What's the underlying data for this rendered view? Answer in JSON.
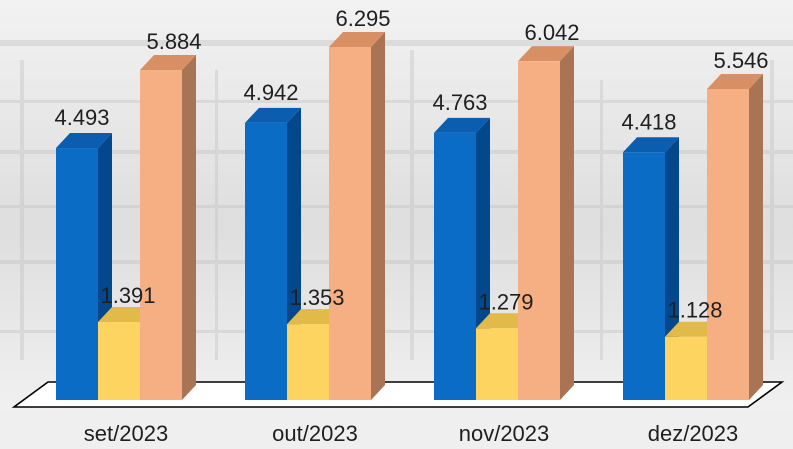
{
  "chart_data": {
    "type": "bar",
    "style": "3d-clustered-column",
    "categories": [
      "set/2023",
      "out/2023",
      "nov/2023",
      "dez/2023"
    ],
    "series": [
      {
        "color": "#0a6cc4",
        "values": [
          4.493,
          4.942,
          4.763,
          4.418
        ]
      },
      {
        "color": "#fcd45f",
        "values": [
          1.391,
          1.353,
          1.279,
          1.128
        ]
      },
      {
        "color": "#f5af82",
        "values": [
          5.884,
          6.295,
          6.042,
          5.546
        ]
      }
    ],
    "data_labels": [
      [
        "4.493",
        "4.942",
        "4.763",
        "4.418"
      ],
      [
        "1.391",
        "1.353",
        "1.279",
        "1.128"
      ],
      [
        "5.884",
        "6.295",
        "6.042",
        "5.546"
      ]
    ],
    "ylim": [
      0,
      6.295
    ],
    "grid": false,
    "legend": "none",
    "background": "faded photograph of a building"
  }
}
